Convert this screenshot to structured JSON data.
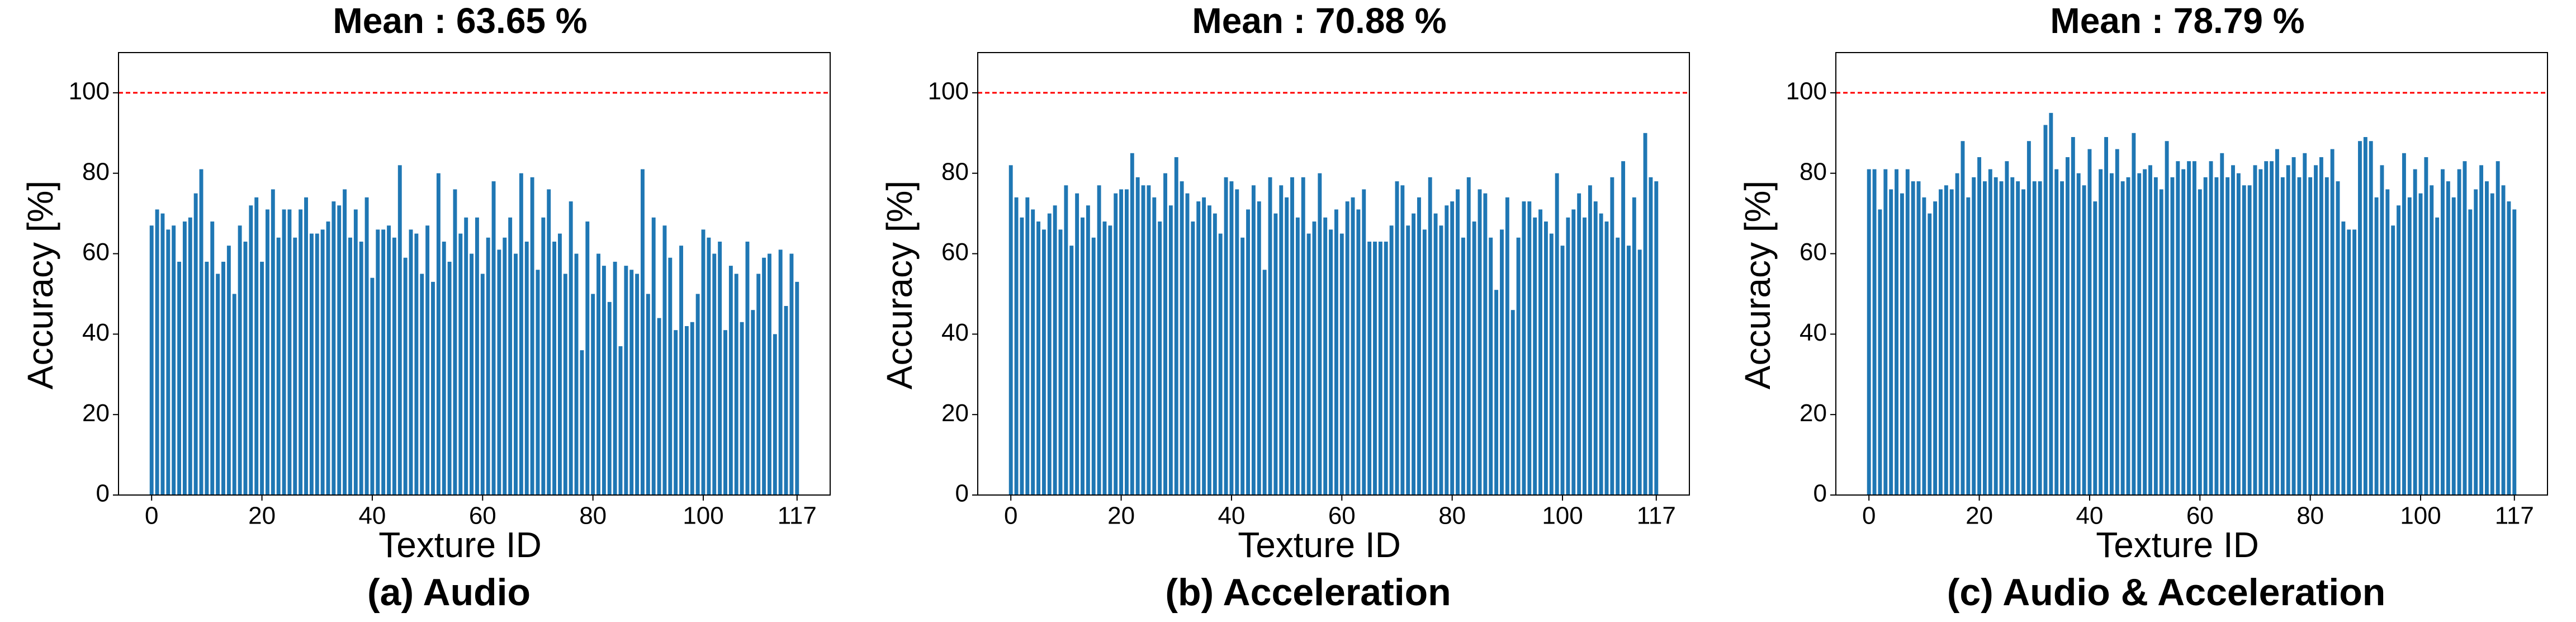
{
  "chart_data": [
    {
      "type": "bar",
      "title": "Mean : 63.65 %",
      "caption": "(a) Audio",
      "xlabel": "Texture ID",
      "ylabel": "Accuracy [%]",
      "color": "#1f77b4",
      "x": [
        0,
        1,
        2,
        3,
        4,
        5,
        6,
        7,
        8,
        9,
        10,
        11,
        12,
        13,
        14,
        15,
        16,
        17,
        18,
        19,
        20,
        21,
        22,
        23,
        24,
        25,
        26,
        27,
        28,
        29,
        30,
        31,
        32,
        33,
        34,
        35,
        36,
        37,
        38,
        39,
        40,
        41,
        42,
        43,
        44,
        45,
        46,
        47,
        48,
        49,
        50,
        51,
        52,
        53,
        54,
        55,
        56,
        57,
        58,
        59,
        60,
        61,
        62,
        63,
        64,
        65,
        66,
        67,
        68,
        69,
        70,
        71,
        72,
        73,
        74,
        75,
        76,
        77,
        78,
        79,
        80,
        81,
        82,
        83,
        84,
        85,
        86,
        87,
        88,
        89,
        90,
        91,
        92,
        93,
        94,
        95,
        96,
        97,
        98,
        99,
        100,
        101,
        102,
        103,
        104,
        105,
        106,
        107,
        108,
        109,
        110,
        111,
        112,
        113,
        114,
        115,
        116,
        117
      ],
      "values": [
        67,
        71,
        70,
        66,
        67,
        58,
        68,
        69,
        75,
        81,
        58,
        68,
        55,
        58,
        62,
        50,
        67,
        63,
        72,
        74,
        58,
        71,
        76,
        64,
        71,
        71,
        64,
        71,
        74,
        65,
        65,
        66,
        68,
        73,
        72,
        76,
        64,
        71,
        63,
        74,
        54,
        66,
        66,
        67,
        64,
        82,
        59,
        66,
        65,
        55,
        67,
        53,
        80,
        63,
        58,
        76,
        65,
        69,
        60,
        69,
        55,
        64,
        78,
        61,
        64,
        69,
        60,
        80,
        63,
        79,
        56,
        69,
        76,
        63,
        65,
        55,
        73,
        60,
        36,
        68,
        50,
        60,
        57,
        48,
        58,
        37,
        57,
        56,
        55,
        81,
        50,
        69,
        44,
        67,
        59,
        41,
        62,
        42,
        43,
        50,
        66,
        64,
        60,
        63,
        41,
        57,
        55,
        43,
        63,
        46,
        55,
        59,
        60,
        40,
        61,
        47,
        60,
        53
      ],
      "xlim": [
        -6,
        123
      ],
      "ylim": [
        0,
        110
      ],
      "xticks": [
        0,
        20,
        40,
        60,
        80,
        100,
        117
      ],
      "yticks": [
        0,
        20,
        40,
        60,
        80,
        100
      ],
      "hline": 100,
      "hline_color": "#ff0000"
    },
    {
      "type": "bar",
      "title": "Mean : 70.88 %",
      "caption": "(b) Acceleration",
      "xlabel": "Texture ID",
      "ylabel": "Accuracy [%]",
      "color": "#1f77b4",
      "x": [
        0,
        1,
        2,
        3,
        4,
        5,
        6,
        7,
        8,
        9,
        10,
        11,
        12,
        13,
        14,
        15,
        16,
        17,
        18,
        19,
        20,
        21,
        22,
        23,
        24,
        25,
        26,
        27,
        28,
        29,
        30,
        31,
        32,
        33,
        34,
        35,
        36,
        37,
        38,
        39,
        40,
        41,
        42,
        43,
        44,
        45,
        46,
        47,
        48,
        49,
        50,
        51,
        52,
        53,
        54,
        55,
        56,
        57,
        58,
        59,
        60,
        61,
        62,
        63,
        64,
        65,
        66,
        67,
        68,
        69,
        70,
        71,
        72,
        73,
        74,
        75,
        76,
        77,
        78,
        79,
        80,
        81,
        82,
        83,
        84,
        85,
        86,
        87,
        88,
        89,
        90,
        91,
        92,
        93,
        94,
        95,
        96,
        97,
        98,
        99,
        100,
        101,
        102,
        103,
        104,
        105,
        106,
        107,
        108,
        109,
        110,
        111,
        112,
        113,
        114,
        115,
        116,
        117
      ],
      "values": [
        82,
        74,
        69,
        74,
        71,
        68,
        66,
        70,
        72,
        66,
        77,
        62,
        75,
        69,
        72,
        64,
        77,
        68,
        67,
        75,
        76,
        76,
        85,
        79,
        77,
        77,
        74,
        68,
        80,
        72,
        84,
        78,
        75,
        68,
        73,
        74,
        72,
        70,
        65,
        79,
        78,
        76,
        64,
        71,
        77,
        73,
        56,
        79,
        70,
        77,
        74,
        79,
        69,
        79,
        65,
        68,
        80,
        69,
        66,
        71,
        65,
        73,
        74,
        71,
        76,
        63,
        63,
        63,
        63,
        67,
        78,
        77,
        67,
        70,
        74,
        66,
        79,
        70,
        67,
        72,
        73,
        76,
        64,
        79,
        68,
        76,
        75,
        64,
        51,
        66,
        74,
        46,
        64,
        73,
        73,
        69,
        71,
        68,
        65,
        80,
        62,
        69,
        71,
        75,
        69,
        77,
        73,
        70,
        68,
        79,
        64,
        83,
        62,
        74,
        61,
        90,
        79,
        78
      ],
      "xlim": [
        -6,
        123
      ],
      "ylim": [
        0,
        110
      ],
      "xticks": [
        0,
        20,
        40,
        60,
        80,
        100,
        117
      ],
      "yticks": [
        0,
        20,
        40,
        60,
        80,
        100
      ],
      "hline": 100,
      "hline_color": "#ff0000"
    },
    {
      "type": "bar",
      "title": "Mean : 78.79 %",
      "caption": "(c) Audio & Acceleration",
      "xlabel": "Texture ID",
      "ylabel": "Accuracy [%]",
      "color": "#1f77b4",
      "x": [
        0,
        1,
        2,
        3,
        4,
        5,
        6,
        7,
        8,
        9,
        10,
        11,
        12,
        13,
        14,
        15,
        16,
        17,
        18,
        19,
        20,
        21,
        22,
        23,
        24,
        25,
        26,
        27,
        28,
        29,
        30,
        31,
        32,
        33,
        34,
        35,
        36,
        37,
        38,
        39,
        40,
        41,
        42,
        43,
        44,
        45,
        46,
        47,
        48,
        49,
        50,
        51,
        52,
        53,
        54,
        55,
        56,
        57,
        58,
        59,
        60,
        61,
        62,
        63,
        64,
        65,
        66,
        67,
        68,
        69,
        70,
        71,
        72,
        73,
        74,
        75,
        76,
        77,
        78,
        79,
        80,
        81,
        82,
        83,
        84,
        85,
        86,
        87,
        88,
        89,
        90,
        91,
        92,
        93,
        94,
        95,
        96,
        97,
        98,
        99,
        100,
        101,
        102,
        103,
        104,
        105,
        106,
        107,
        108,
        109,
        110,
        111,
        112,
        113,
        114,
        115,
        116,
        117
      ],
      "values": [
        81,
        81,
        71,
        81,
        76,
        81,
        75,
        81,
        78,
        78,
        74,
        70,
        73,
        76,
        77,
        76,
        80,
        88,
        74,
        79,
        84,
        78,
        81,
        79,
        78,
        83,
        79,
        78,
        76,
        88,
        78,
        78,
        92,
        95,
        81,
        78,
        84,
        89,
        80,
        77,
        86,
        73,
        81,
        89,
        80,
        86,
        78,
        79,
        90,
        80,
        81,
        82,
        79,
        76,
        88,
        79,
        83,
        81,
        83,
        83,
        76,
        79,
        83,
        79,
        85,
        79,
        82,
        80,
        77,
        77,
        82,
        81,
        83,
        83,
        86,
        79,
        82,
        84,
        79,
        85,
        79,
        82,
        84,
        79,
        86,
        78,
        68,
        66,
        66,
        88,
        89,
        88,
        74,
        82,
        76,
        67,
        72,
        85,
        74,
        81,
        75,
        84,
        77,
        69,
        81,
        78,
        74,
        81,
        83,
        71,
        76,
        82,
        78,
        75,
        83,
        77,
        73,
        71
      ],
      "xlim": [
        -6,
        123
      ],
      "ylim": [
        0,
        110
      ],
      "xticks": [
        0,
        20,
        40,
        60,
        80,
        100,
        117
      ],
      "yticks": [
        0,
        20,
        40,
        60,
        80,
        100
      ],
      "hline": 100,
      "hline_color": "#ff0000"
    }
  ]
}
